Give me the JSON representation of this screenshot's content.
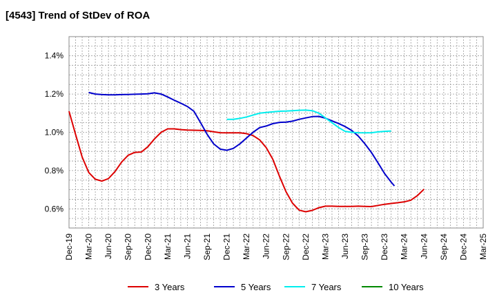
{
  "page": {
    "title": "[4543]  Trend of StDev of ROA"
  },
  "chart_data": {
    "type": "line",
    "title": "[4543]  Trend of StDev of ROA",
    "xlabel": "",
    "ylabel": "",
    "grid": true,
    "legend_position": "bottom",
    "x_ticks": [
      "Dec-19",
      "Mar-20",
      "Jun-20",
      "Sep-20",
      "Dec-20",
      "Mar-21",
      "Jun-21",
      "Sep-21",
      "Dec-21",
      "Mar-22",
      "Jun-22",
      "Sep-22",
      "Dec-22",
      "Mar-23",
      "Jun-23",
      "Sep-23",
      "Dec-23",
      "Mar-24",
      "Jun-24",
      "Sep-24",
      "Dec-24",
      "Mar-25"
    ],
    "y_ticks": [
      "0.6%",
      "0.8%",
      "1.0%",
      "1.2%",
      "1.4%"
    ],
    "ylim": [
      0.5,
      1.5
    ],
    "y_tick_values": [
      0.6,
      0.8,
      1.0,
      1.2,
      1.4
    ],
    "x_range": [
      0,
      21
    ],
    "series": [
      {
        "name": "3 Years",
        "color": "#dd0000",
        "points": [
          [
            0,
            1.11
          ],
          [
            0.33,
            0.99
          ],
          [
            0.67,
            0.87
          ],
          [
            1,
            0.79
          ],
          [
            1.33,
            0.755
          ],
          [
            1.67,
            0.745
          ],
          [
            2,
            0.758
          ],
          [
            2.33,
            0.795
          ],
          [
            2.67,
            0.845
          ],
          [
            3,
            0.88
          ],
          [
            3.33,
            0.895
          ],
          [
            3.67,
            0.897
          ],
          [
            4,
            0.925
          ],
          [
            4.33,
            0.965
          ],
          [
            4.67,
            1.0
          ],
          [
            5,
            1.018
          ],
          [
            5.33,
            1.018
          ],
          [
            5.67,
            1.014
          ],
          [
            6,
            1.012
          ],
          [
            6.33,
            1.011
          ],
          [
            6.67,
            1.01
          ],
          [
            7,
            1.008
          ],
          [
            7.33,
            1.003
          ],
          [
            7.67,
            0.998
          ],
          [
            8,
            0.997
          ],
          [
            8.33,
            0.997
          ],
          [
            8.67,
            0.997
          ],
          [
            9,
            0.993
          ],
          [
            9.33,
            0.983
          ],
          [
            9.67,
            0.96
          ],
          [
            10,
            0.92
          ],
          [
            10.33,
            0.86
          ],
          [
            10.67,
            0.77
          ],
          [
            11,
            0.69
          ],
          [
            11.33,
            0.63
          ],
          [
            11.67,
            0.593
          ],
          [
            12,
            0.585
          ],
          [
            12.33,
            0.592
          ],
          [
            12.67,
            0.606
          ],
          [
            13,
            0.614
          ],
          [
            13.33,
            0.614
          ],
          [
            13.67,
            0.613
          ],
          [
            14,
            0.613
          ],
          [
            14.33,
            0.613
          ],
          [
            14.67,
            0.614
          ],
          [
            15,
            0.613
          ],
          [
            15.33,
            0.612
          ],
          [
            15.67,
            0.618
          ],
          [
            16,
            0.624
          ],
          [
            16.33,
            0.628
          ],
          [
            16.67,
            0.632
          ],
          [
            17,
            0.637
          ],
          [
            17.33,
            0.645
          ],
          [
            17.67,
            0.67
          ],
          [
            18,
            0.703
          ]
        ]
      },
      {
        "name": "5 Years",
        "color": "#0000cc",
        "points": [
          [
            1,
            1.208
          ],
          [
            1.33,
            1.2
          ],
          [
            1.67,
            1.197
          ],
          [
            2,
            1.196
          ],
          [
            2.33,
            1.196
          ],
          [
            2.67,
            1.197
          ],
          [
            3,
            1.198
          ],
          [
            3.33,
            1.199
          ],
          [
            3.67,
            1.2
          ],
          [
            4,
            1.201
          ],
          [
            4.33,
            1.206
          ],
          [
            4.67,
            1.2
          ],
          [
            5,
            1.185
          ],
          [
            5.33,
            1.168
          ],
          [
            5.67,
            1.152
          ],
          [
            6,
            1.135
          ],
          [
            6.33,
            1.11
          ],
          [
            6.67,
            1.05
          ],
          [
            7,
            0.99
          ],
          [
            7.33,
            0.94
          ],
          [
            7.67,
            0.912
          ],
          [
            8,
            0.906
          ],
          [
            8.33,
            0.916
          ],
          [
            8.67,
            0.94
          ],
          [
            9,
            0.97
          ],
          [
            9.33,
            1.0
          ],
          [
            9.67,
            1.025
          ],
          [
            10,
            1.033
          ],
          [
            10.33,
            1.045
          ],
          [
            10.67,
            1.052
          ],
          [
            11,
            1.053
          ],
          [
            11.33,
            1.058
          ],
          [
            11.67,
            1.068
          ],
          [
            12,
            1.075
          ],
          [
            12.33,
            1.082
          ],
          [
            12.67,
            1.083
          ],
          [
            13,
            1.074
          ],
          [
            13.33,
            1.06
          ],
          [
            13.67,
            1.046
          ],
          [
            14,
            1.03
          ],
          [
            14.33,
            1.01
          ],
          [
            14.67,
            0.98
          ],
          [
            15,
            0.94
          ],
          [
            15.33,
            0.895
          ],
          [
            15.67,
            0.84
          ],
          [
            16,
            0.785
          ],
          [
            16.33,
            0.74
          ],
          [
            16.5,
            0.72
          ]
        ]
      },
      {
        "name": "7 Years",
        "color": "#00eeee",
        "points": [
          [
            8,
            1.068
          ],
          [
            8.33,
            1.068
          ],
          [
            8.67,
            1.073
          ],
          [
            9,
            1.08
          ],
          [
            9.33,
            1.09
          ],
          [
            9.67,
            1.1
          ],
          [
            10,
            1.104
          ],
          [
            10.33,
            1.107
          ],
          [
            10.67,
            1.11
          ],
          [
            11,
            1.111
          ],
          [
            11.33,
            1.113
          ],
          [
            11.67,
            1.115
          ],
          [
            12,
            1.116
          ],
          [
            12.33,
            1.113
          ],
          [
            12.67,
            1.1
          ],
          [
            13,
            1.075
          ],
          [
            13.33,
            1.05
          ],
          [
            13.67,
            1.025
          ],
          [
            14,
            1.005
          ],
          [
            14.33,
            1.0
          ],
          [
            14.67,
            0.998
          ],
          [
            15,
            0.997
          ],
          [
            15.33,
            0.998
          ],
          [
            15.67,
            1.002
          ],
          [
            16,
            1.005
          ],
          [
            16.33,
            1.007
          ]
        ]
      },
      {
        "name": "10 Years",
        "color": "#008800",
        "points": []
      }
    ]
  }
}
